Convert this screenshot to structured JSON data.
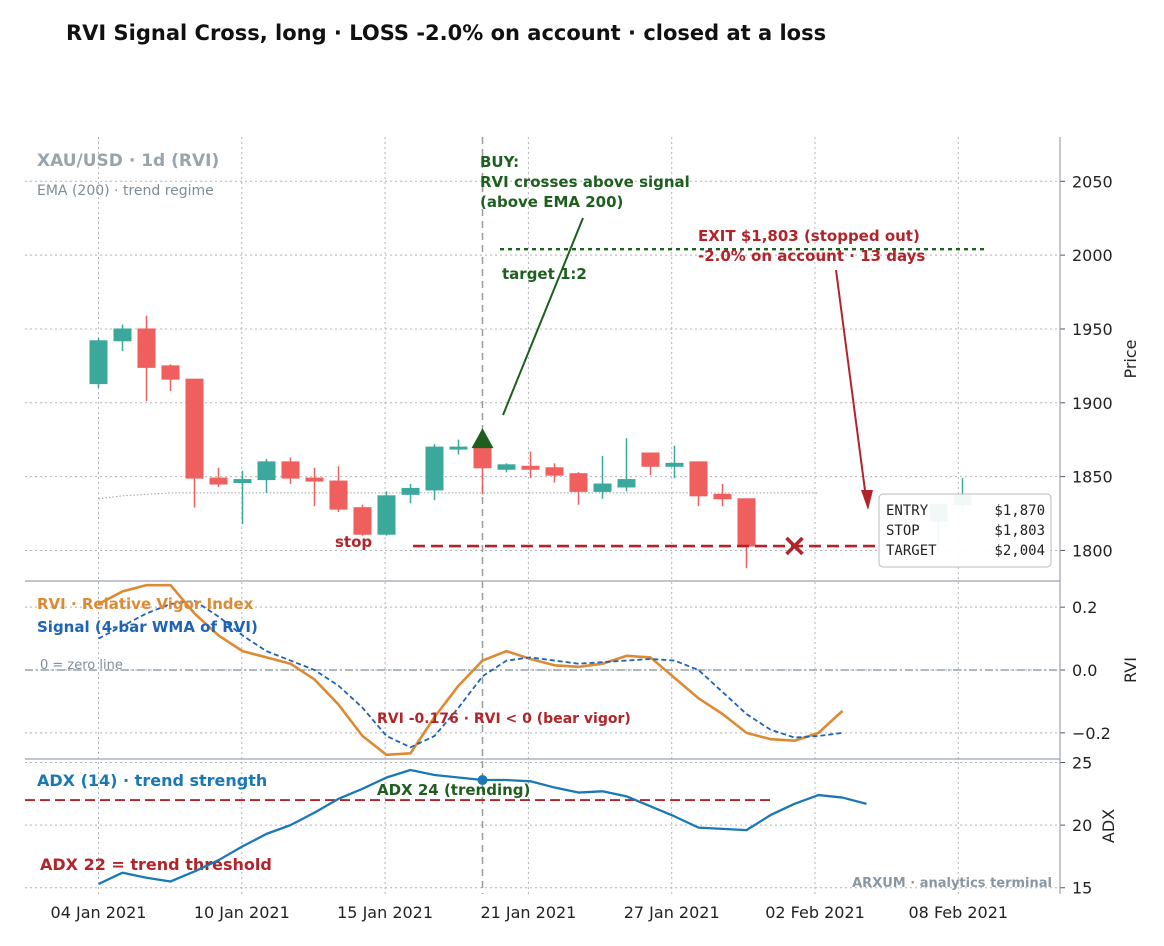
{
  "title": "RVI Signal Cross, long · LOSS -2.0% on account · closed at a loss",
  "colors": {
    "up": "#3aa89b",
    "down": "#ef5f5d",
    "buy": "#1e5e1e",
    "exit": "#b3242a",
    "rvi": "#dd8a35",
    "signal": "#1f63b5",
    "adx": "#1a78b4",
    "grid": "#b0b4bb",
    "axis": "#9aa4ad"
  },
  "chart_data": [
    {
      "type": "candlestick",
      "name": "price",
      "header": "XAU/USD · 1d (RVI)",
      "subheader": "EMA (200) · trend regime",
      "ylabel": "Price",
      "ylim": [
        1780,
        2080
      ],
      "yticks": [
        1800,
        1850,
        1900,
        1950,
        2000,
        2050
      ],
      "xticks": [
        "04 Jan 2021",
        "10 Jan 2021",
        "15 Jan 2021",
        "21 Jan 2021",
        "27 Jan 2021",
        "02 Feb 2021",
        "08 Feb 2021"
      ],
      "dates": [
        "2021-01-04",
        "2021-01-05",
        "2021-01-06",
        "2021-01-07",
        "2021-01-08",
        "2021-01-09",
        "2021-01-10",
        "2021-01-11",
        "2021-01-12",
        "2021-01-13",
        "2021-01-14",
        "2021-01-15",
        "2021-01-16",
        "2021-01-17",
        "2021-01-18",
        "2021-01-19",
        "2021-01-20",
        "2021-01-21",
        "2021-01-22",
        "2021-01-23",
        "2021-01-24",
        "2021-01-25",
        "2021-01-26",
        "2021-01-27",
        "2021-01-28",
        "2021-01-29",
        "2021-01-30",
        "2021-01-31",
        "2021-02-01",
        "2021-02-02",
        "2021-02-03",
        "2021-02-04",
        "2021-02-05",
        "2021-02-06",
        "2021-02-07",
        "2021-02-08",
        "2021-02-09"
      ],
      "ohlc": [
        [
          1913,
          1944,
          1910,
          1942
        ],
        [
          1942,
          1953,
          1935,
          1950
        ],
        [
          1950,
          1959,
          1901,
          1924
        ],
        [
          1925,
          1926,
          1908,
          1916
        ],
        [
          1916,
          1916,
          1829,
          1849
        ],
        [
          1849,
          1856,
          1843,
          1845
        ],
        [
          1846,
          1854,
          1818,
          1848
        ],
        [
          1848,
          1862,
          1839,
          1860
        ],
        [
          1860,
          1863,
          1845,
          1849
        ],
        [
          1849,
          1856,
          1830,
          1847
        ],
        [
          1847,
          1857,
          1826,
          1828
        ],
        [
          1829,
          1831,
          1810,
          1811
        ],
        [
          1811,
          1840,
          1810,
          1837
        ],
        [
          1838,
          1845,
          1832,
          1842
        ],
        [
          1841,
          1872,
          1834,
          1870
        ],
        [
          1870,
          1875,
          1865,
          1870
        ],
        [
          1870,
          1870,
          1838,
          1856
        ],
        [
          1855,
          1859,
          1853,
          1858
        ],
        [
          1857,
          1867,
          1849,
          1855
        ],
        [
          1856,
          1859,
          1846,
          1851
        ],
        [
          1852,
          1853,
          1831,
          1840
        ],
        [
          1840,
          1864,
          1835,
          1845
        ],
        [
          1843,
          1876,
          1840,
          1848
        ],
        [
          1866,
          1866,
          1851,
          1857
        ],
        [
          1857,
          1871,
          1849,
          1859
        ],
        [
          1860,
          1860,
          1830,
          1837
        ],
        [
          1838,
          1845,
          1830,
          1835
        ],
        [
          1835,
          1835,
          1788,
          1803
        ],
        null,
        [
          1820,
          1831,
          1800,
          1831
        ],
        [
          1831,
          1849,
          1829,
          1837
        ]
      ],
      "candle_index": [
        0,
        1,
        2,
        3,
        4,
        5,
        6,
        7,
        8,
        9,
        10,
        11,
        12,
        13,
        14,
        15,
        16,
        17,
        18,
        19,
        20,
        21,
        22,
        23,
        24,
        25,
        26,
        27,
        28,
        29,
        30
      ],
      "candle_dates": [
        "2021-01-04",
        "2021-01-05",
        "2021-01-06",
        "2021-01-07",
        "2021-01-08",
        "2021-01-09",
        "2021-01-10",
        "2021-01-11",
        "2021-01-12",
        "2021-01-13",
        "2021-01-14",
        "2021-01-15",
        "2021-01-16",
        "2021-01-17",
        "2021-01-18",
        "2021-01-19",
        "2021-01-20",
        "2021-01-21",
        "2021-01-22",
        "2021-01-23",
        "2021-01-24",
        "2021-01-25",
        "2021-01-26",
        "2021-01-27",
        "2021-01-28",
        "2021-01-29",
        "2021-01-30",
        "2021-01-31",
        "2021-02-01",
        "2021-02-08",
        "2021-02-09"
      ],
      "ema": [
        1835,
        1837,
        1838,
        1839,
        1839,
        1839,
        1839,
        1839,
        1839,
        1839,
        1839,
        1839,
        1839,
        1839,
        1839,
        1839,
        1839,
        1839,
        1839,
        1839,
        1839,
        1839,
        1839,
        1839,
        1839,
        1839,
        1839,
        1839,
        1839,
        1839,
        1839
      ],
      "entry_date": "2021-01-20",
      "entry_price": 1870,
      "exit_date": "2021-02-02",
      "exit_price": 1803,
      "stop_price": 1803,
      "target_price": 2004,
      "buy_label": [
        "BUY:",
        "RVI crosses above signal",
        "(above EMA 200)"
      ],
      "target_label": "target 1:2",
      "stop_label": "stop",
      "exit_label": [
        "EXIT $1,803 (stopped out)",
        "-2.0% on account  ·  13 days"
      ],
      "info_box": [
        {
          "label": "ENTRY",
          "value": "$1,870"
        },
        {
          "label": "STOP",
          "value": "$1,803"
        },
        {
          "label": "TARGET",
          "value": "$2,004"
        }
      ]
    },
    {
      "type": "line",
      "name": "rvi",
      "ylabel": "RVI",
      "ylim": [
        -0.28,
        0.28
      ],
      "yticks": [
        -0.2,
        0.0,
        0.2
      ],
      "ytick_labels": [
        "−0.2",
        "0.0",
        "0.2"
      ],
      "series": [
        {
          "name": "RVI · Relative Vigor Index",
          "values": [
            0.21,
            0.25,
            0.27,
            0.27,
            0.18,
            0.11,
            0.06,
            0.04,
            0.02,
            -0.03,
            -0.11,
            -0.21,
            -0.27,
            -0.265,
            -0.15,
            -0.05,
            0.03,
            0.06,
            0.035,
            0.015,
            0.01,
            0.02,
            0.045,
            0.04,
            -0.025,
            -0.09,
            -0.14,
            -0.2,
            -0.22,
            -0.225,
            -0.2,
            -0.13
          ]
        },
        {
          "name": "Signal (4-bar WMA of RVI)",
          "values": [
            0.1,
            0.14,
            0.18,
            0.21,
            0.22,
            0.17,
            0.11,
            0.06,
            0.03,
            0.0,
            -0.05,
            -0.12,
            -0.21,
            -0.246,
            -0.21,
            -0.12,
            -0.02,
            0.03,
            0.04,
            0.03,
            0.02,
            0.025,
            0.03,
            0.035,
            0.03,
            0.0,
            -0.07,
            -0.14,
            -0.19,
            -0.215,
            -0.21,
            -0.2
          ]
        }
      ],
      "zero_label": "0 = zero line",
      "annotation": "RVI -0.176 · RVI < 0 (bear vigor)"
    },
    {
      "type": "line",
      "name": "adx",
      "ylabel": "ADX",
      "ylim": [
        14.5,
        25.2
      ],
      "yticks": [
        15,
        20,
        25
      ],
      "series": [
        {
          "name": "ADX (14) · trend strength",
          "values": [
            15.3,
            16.2,
            15.8,
            15.5,
            16.3,
            17.2,
            18.3,
            19.3,
            20.0,
            21.0,
            22.1,
            22.9,
            23.8,
            24.4,
            24.0,
            23.8,
            23.6,
            23.6,
            23.5,
            23.0,
            22.6,
            22.7,
            22.3,
            21.5,
            20.7,
            19.8,
            19.7,
            19.6,
            20.8,
            21.7,
            22.4,
            22.2,
            21.7
          ]
        }
      ],
      "threshold": 22,
      "threshold_label": "ADX 22 = trend threshold",
      "annotation": "ADX 24 (trending)"
    }
  ],
  "watermark": "ARXUM · analytics terminal"
}
